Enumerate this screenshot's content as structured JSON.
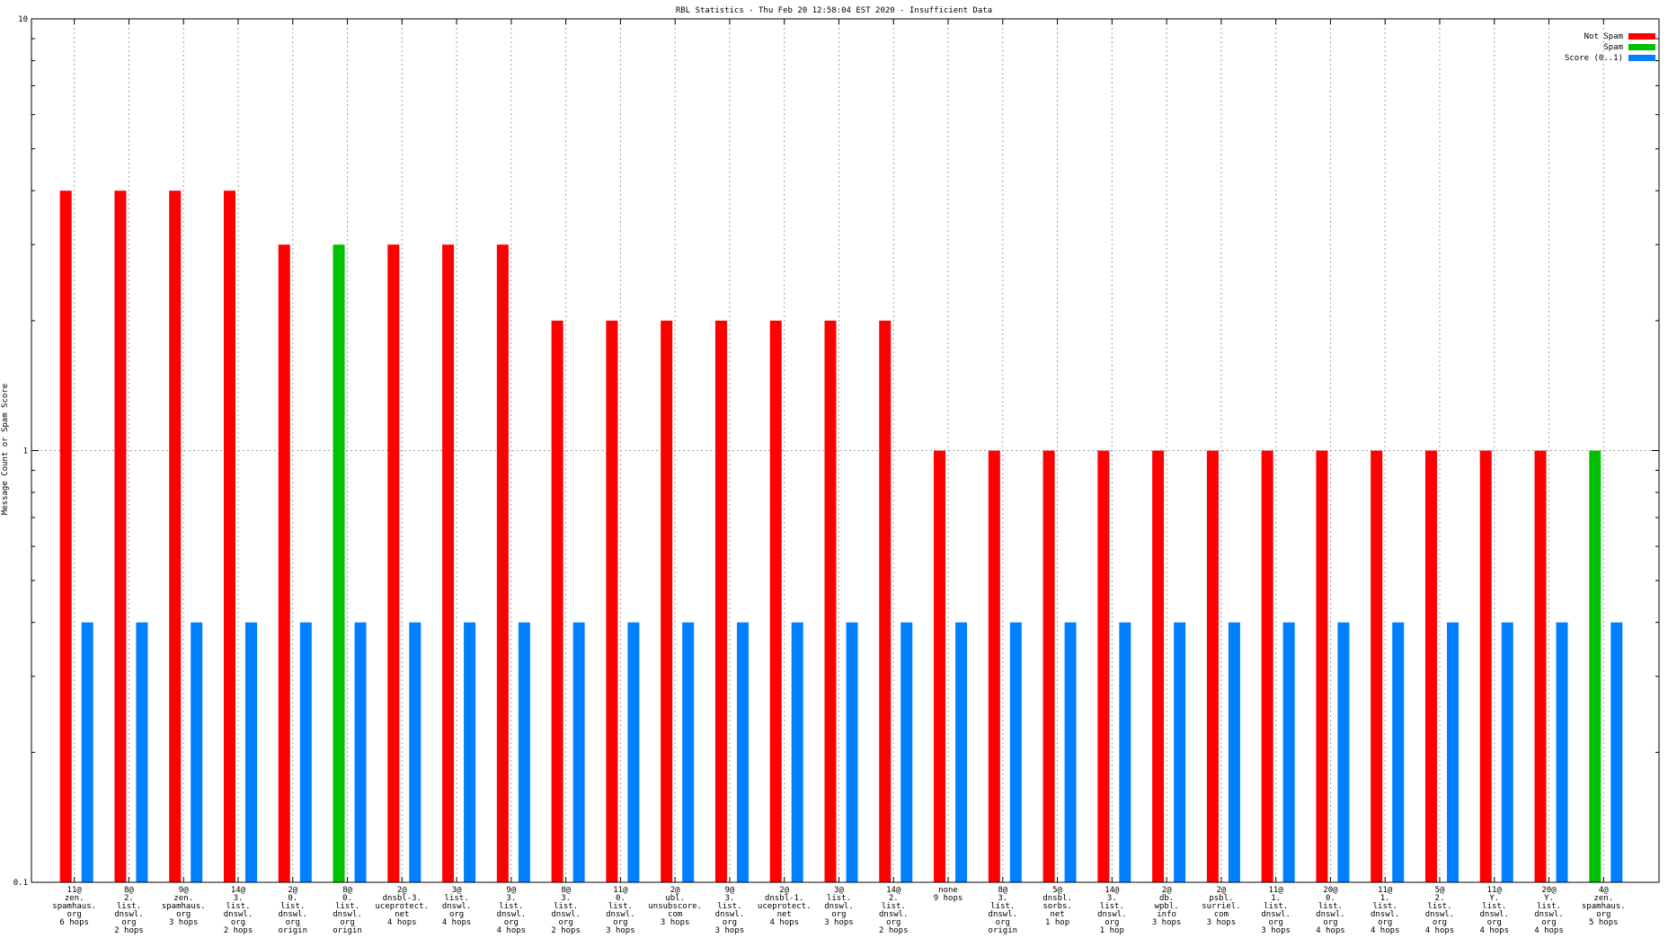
{
  "chart_data": {
    "type": "bar",
    "title": "RBL Statistics - Thu Feb 20 12:58:04 EST 2020 - Insufficient Data",
    "ylabel": "Message Count or Spam Score",
    "xlabel": "",
    "yscale": "log",
    "ylim": [
      0.1,
      10
    ],
    "yticks": [
      "0.1",
      "1",
      "10"
    ],
    "grid": true,
    "legend_position": "top-right",
    "colors": {
      "not_spam": "#ff0000",
      "spam": "#00c000",
      "score": "#0080ff"
    },
    "series_names": [
      "Not Spam",
      "Spam",
      "Score (0..1)"
    ],
    "categories": [
      [
        "11@",
        "zen.",
        "spamhaus.",
        "org",
        "6 hops"
      ],
      [
        "8@",
        "2.",
        "list.",
        "dnswl.",
        "org",
        "2 hops"
      ],
      [
        "9@",
        "zen.",
        "spamhaus.",
        "org",
        "3 hops"
      ],
      [
        "14@",
        "3.",
        "list.",
        "dnswl.",
        "org",
        "2 hops"
      ],
      [
        "2@",
        "0.",
        "list.",
        "dnswl.",
        "org",
        "origin"
      ],
      [
        "8@",
        "0.",
        "list.",
        "dnswl.",
        "org",
        "origin"
      ],
      [
        "2@",
        "dnsbl-3.",
        "uceprotect.",
        "net",
        "4 hops"
      ],
      [
        "3@",
        "list.",
        "dnswl.",
        "org",
        "4 hops"
      ],
      [
        "9@",
        "3.",
        "list.",
        "dnswl.",
        "org",
        "4 hops"
      ],
      [
        "8@",
        "3.",
        "list.",
        "dnswl.",
        "org",
        "2 hops"
      ],
      [
        "11@",
        "0.",
        "list.",
        "dnswl.",
        "org",
        "3 hops"
      ],
      [
        "2@",
        "ubl.",
        "unsubscore.",
        "com",
        "3 hops"
      ],
      [
        "9@",
        "3.",
        "list.",
        "dnswl.",
        "org",
        "3 hops"
      ],
      [
        "2@",
        "dnsbl-1.",
        "uceprotect.",
        "net",
        "4 hops"
      ],
      [
        "3@",
        "list.",
        "dnswl.",
        "org",
        "3 hops"
      ],
      [
        "14@",
        "2.",
        "list.",
        "dnswl.",
        "org",
        "2 hops"
      ],
      [
        "none",
        "9 hops"
      ],
      [
        "8@",
        "3.",
        "list.",
        "dnswl.",
        "org",
        "origin"
      ],
      [
        "5@",
        "dnsbl.",
        "sorbs.",
        "net",
        "1 hop"
      ],
      [
        "14@",
        "3.",
        "list.",
        "dnswl.",
        "org",
        "1 hop"
      ],
      [
        "2@",
        "db.",
        "wpbl.",
        "info",
        "3 hops"
      ],
      [
        "2@",
        "psbl.",
        "surriel.",
        "com",
        "3 hops"
      ],
      [
        "11@",
        "1.",
        "list.",
        "dnswl.",
        "org",
        "3 hops"
      ],
      [
        "20@",
        "0.",
        "list.",
        "dnswl.",
        "org",
        "4 hops"
      ],
      [
        "11@",
        "1.",
        "list.",
        "dnswl.",
        "org",
        "4 hops"
      ],
      [
        "5@",
        "2.",
        "list.",
        "dnswl.",
        "org",
        "4 hops"
      ],
      [
        "11@",
        "Y.",
        "list.",
        "dnswl.",
        "org",
        "4 hops"
      ],
      [
        "20@",
        "Y.",
        "list.",
        "dnswl.",
        "org",
        "4 hops"
      ],
      [
        "4@",
        "zen.",
        "spamhaus.",
        "org",
        "5 hops"
      ]
    ],
    "series": [
      {
        "name": "Not Spam",
        "values": [
          4,
          4,
          4,
          4,
          3,
          0,
          3,
          3,
          3,
          2,
          2,
          2,
          2,
          2,
          2,
          2,
          1,
          1,
          1,
          1,
          1,
          1,
          1,
          1,
          1,
          1,
          1,
          1,
          0
        ]
      },
      {
        "name": "Spam",
        "values": [
          0,
          0,
          0,
          0,
          0,
          3,
          0,
          0,
          0,
          0,
          0,
          0,
          0,
          0,
          0,
          0,
          0,
          0,
          0,
          0,
          0,
          0,
          0,
          0,
          0,
          0,
          0,
          0,
          1
        ]
      },
      {
        "name": "Score (0..1)",
        "values": [
          0.4,
          0.4,
          0.4,
          0.4,
          0.4,
          0.4,
          0.4,
          0.4,
          0.4,
          0.4,
          0.4,
          0.4,
          0.4,
          0.4,
          0.4,
          0.4,
          0.4,
          0.4,
          0.4,
          0.4,
          0.4,
          0.4,
          0.4,
          0.4,
          0.4,
          0.4,
          0.4,
          0.4,
          0.4
        ]
      }
    ]
  }
}
